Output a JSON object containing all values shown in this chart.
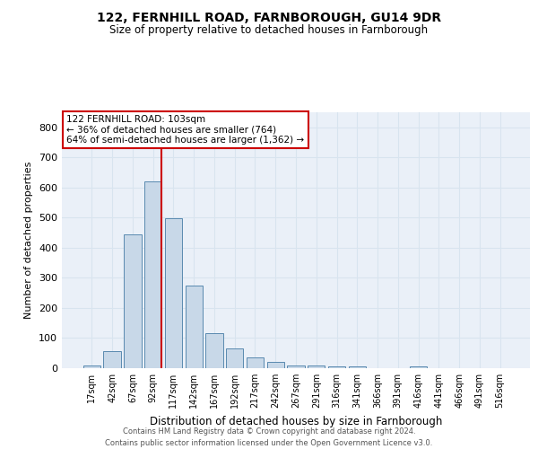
{
  "title_line1": "122, FERNHILL ROAD, FARNBOROUGH, GU14 9DR",
  "title_line2": "Size of property relative to detached houses in Farnborough",
  "xlabel": "Distribution of detached houses by size in Farnborough",
  "ylabel": "Number of detached properties",
  "categories": [
    "17sqm",
    "42sqm",
    "67sqm",
    "92sqm",
    "117sqm",
    "142sqm",
    "167sqm",
    "192sqm",
    "217sqm",
    "242sqm",
    "267sqm",
    "291sqm",
    "316sqm",
    "341sqm",
    "366sqm",
    "391sqm",
    "416sqm",
    "441sqm",
    "466sqm",
    "491sqm",
    "516sqm"
  ],
  "values": [
    10,
    58,
    445,
    620,
    498,
    275,
    117,
    65,
    35,
    20,
    10,
    8,
    7,
    6,
    0,
    0,
    5,
    0,
    0,
    0,
    0
  ],
  "bar_color": "#c8d8e8",
  "bar_edge_color": "#5a8ab0",
  "vline_color": "#cc0000",
  "vline_x_index": 3,
  "annotation_text_line1": "122 FERNHILL ROAD: 103sqm",
  "annotation_text_line2": "← 36% of detached houses are smaller (764)",
  "annotation_text_line3": "64% of semi-detached houses are larger (1,362) →",
  "annotation_box_color": "#ffffff",
  "annotation_box_edge": "#cc0000",
  "ylim": [
    0,
    850
  ],
  "yticks": [
    0,
    100,
    200,
    300,
    400,
    500,
    600,
    700,
    800
  ],
  "grid_color": "#d8e4ef",
  "background_color": "#eaf0f8",
  "footer_line1": "Contains HM Land Registry data © Crown copyright and database right 2024.",
  "footer_line2": "Contains public sector information licensed under the Open Government Licence v3.0."
}
